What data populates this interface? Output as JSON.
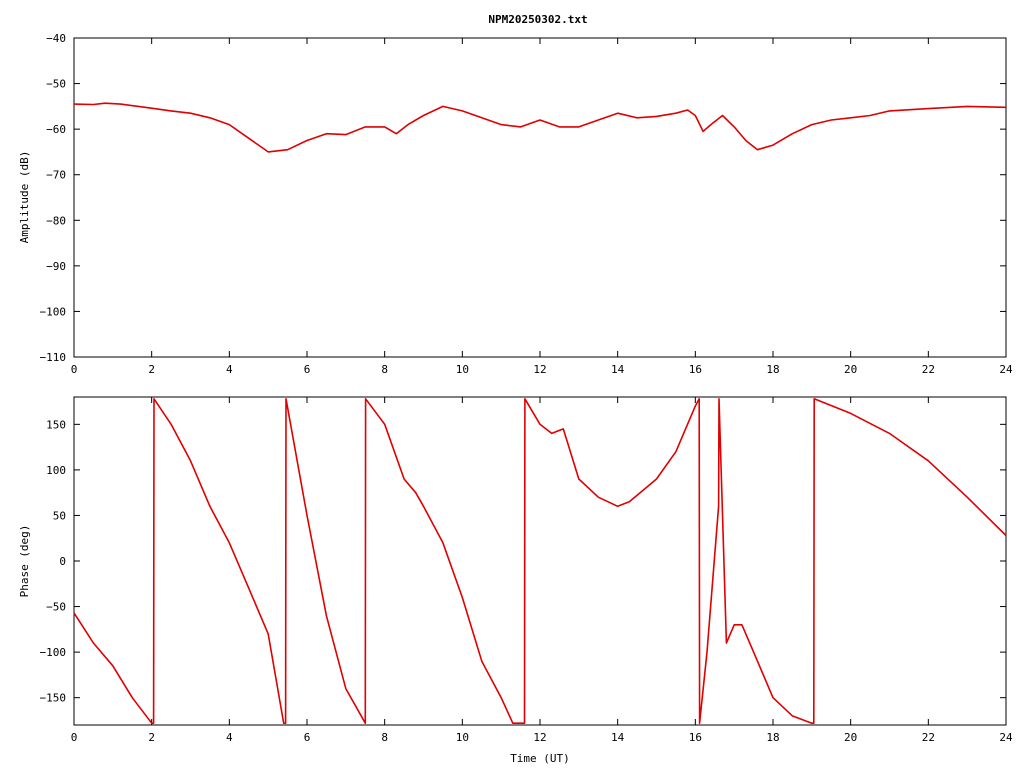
{
  "chart_data": [
    {
      "type": "line",
      "title": "NPM20250302.txt",
      "xlabel": "",
      "ylabel": "Amplitude (dB)",
      "xlim": [
        0,
        24
      ],
      "ylim": [
        -110,
        -40
      ],
      "xticks": [
        0,
        2,
        4,
        6,
        8,
        10,
        12,
        14,
        16,
        18,
        20,
        22,
        24
      ],
      "yticks": [
        -110,
        -100,
        -90,
        -80,
        -70,
        -60,
        -50,
        -40
      ],
      "grid": false,
      "color": "#e00000",
      "series": [
        {
          "x": [
            0,
            0.5,
            0.8,
            1.2,
            2.0,
            2.5,
            3.0,
            3.5,
            4.0,
            4.5,
            5.0,
            5.5,
            6.0,
            6.5,
            7.0,
            7.5,
            8.0,
            8.3,
            8.6,
            9.0,
            9.5,
            10.0,
            10.5,
            11.0,
            11.5,
            12.0,
            12.5,
            13.0,
            13.5,
            14.0,
            14.5,
            15.0,
            15.5,
            15.8,
            16.0,
            16.2,
            16.4,
            16.7,
            17.0,
            17.3,
            17.6,
            18.0,
            18.5,
            19.0,
            19.5,
            20.0,
            20.5,
            21.0,
            22.0,
            23.0,
            24.0
          ],
          "y": [
            -54.5,
            -54.6,
            -54.3,
            -54.5,
            -55.4,
            -56.0,
            -56.5,
            -57.5,
            -59.0,
            -62.0,
            -65.0,
            -64.5,
            -62.5,
            -61.0,
            -61.2,
            -59.5,
            -59.5,
            -61.0,
            -59.0,
            -57.0,
            -55.0,
            -56.0,
            -57.5,
            -59.0,
            -59.5,
            -58.0,
            -59.5,
            -59.5,
            -58.0,
            -56.5,
            -57.5,
            -57.2,
            -56.5,
            -55.8,
            -57.0,
            -60.5,
            -59.0,
            -57.0,
            -59.5,
            -62.5,
            -64.5,
            -63.5,
            -61.0,
            -59.0,
            -58.0,
            -57.5,
            -57.0,
            -56.0,
            -55.5,
            -55.0,
            -55.2
          ]
        }
      ]
    },
    {
      "type": "line",
      "title": "",
      "xlabel": "Time (UT)",
      "ylabel": "Phase (deg)",
      "xlim": [
        0,
        24
      ],
      "ylim": [
        -180,
        180
      ],
      "xticks": [
        0,
        2,
        4,
        6,
        8,
        10,
        12,
        14,
        16,
        18,
        20,
        22,
        24
      ],
      "yticks": [
        -150,
        -100,
        -50,
        0,
        50,
        100,
        150
      ],
      "grid": false,
      "color": "#e00000",
      "series": [
        {
          "x": [
            0,
            0.5,
            1.0,
            1.5,
            2.0,
            2.05,
            2.06,
            2.5,
            3.0,
            3.5,
            4.0,
            4.5,
            5.0,
            5.4,
            5.45,
            5.46,
            6.0,
            6.5,
            7.0,
            7.5,
            7.51,
            8.0,
            8.5,
            8.8,
            9.0,
            9.5,
            10.0,
            10.5,
            11.0,
            11.3,
            11.6,
            11.61,
            12.0,
            12.3,
            12.6,
            13.0,
            13.5,
            14.0,
            14.3,
            15.0,
            15.5,
            16.0,
            16.1,
            16.11,
            16.3,
            16.6,
            16.61,
            16.8,
            17.0,
            17.2,
            17.5,
            18.0,
            18.5,
            19.0,
            19.05,
            19.06,
            20.0,
            21.0,
            22.0,
            23.0,
            24.0
          ],
          "y": [
            -57,
            -90,
            -115,
            -150,
            -178,
            -178,
            178,
            150,
            110,
            60,
            20,
            -30,
            -80,
            -178,
            -178,
            178,
            50,
            -60,
            -140,
            -178,
            178,
            150,
            90,
            75,
            60,
            20,
            -40,
            -110,
            -150,
            -178,
            -178,
            178,
            150,
            140,
            145,
            90,
            70,
            60,
            65,
            90,
            120,
            170,
            178,
            -178,
            -100,
            60,
            178,
            -90,
            -70,
            -70,
            -100,
            -150,
            -170,
            -178,
            -178,
            178,
            162,
            140,
            110,
            70,
            28
          ]
        }
      ]
    }
  ]
}
